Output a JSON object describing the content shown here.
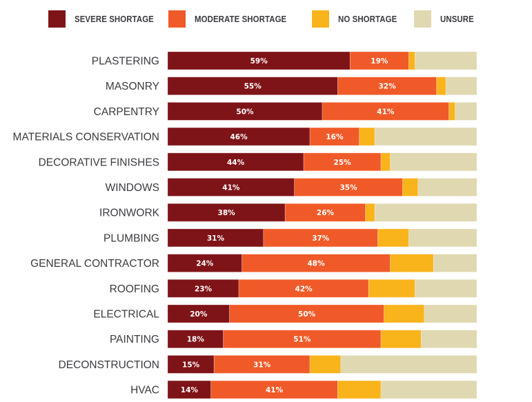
{
  "chart_data": {
    "type": "bar",
    "orientation": "horizontal",
    "stacked": true,
    "title": "",
    "xlabel": "",
    "ylabel": "",
    "xlim": [
      0,
      100
    ],
    "grid": false,
    "legend_position": "top",
    "categories": [
      "PLASTERING",
      "MASONRY",
      "CARPENTRY",
      "MATERIALS CONSERVATION",
      "DECORATIVE FINISHES",
      "WINDOWS",
      "IRONWORK",
      "PLUMBING",
      "GENERAL CONTRACTOR",
      "ROOFING",
      "ELECTRICAL",
      "PAINTING",
      "DECONSTRUCTION",
      "HVAC"
    ],
    "series": [
      {
        "name": "SEVERE SHORTAGE",
        "color": "#7f1418",
        "labeled": true,
        "values": [
          59,
          55,
          50,
          46,
          44,
          41,
          38,
          31,
          24,
          23,
          20,
          18,
          15,
          14
        ]
      },
      {
        "name": "MODERATE SHORTAGE",
        "color": "#f05a28",
        "labeled": true,
        "values": [
          19,
          32,
          41,
          16,
          25,
          35,
          26,
          37,
          48,
          42,
          50,
          51,
          31,
          41
        ]
      },
      {
        "name": "NO SHORTAGE",
        "color": "#f9b31b",
        "labeled": false,
        "values": [
          2,
          3,
          2,
          5,
          3,
          5,
          3,
          10,
          14,
          15,
          13,
          13,
          10,
          14
        ]
      },
      {
        "name": "UNSURE",
        "color": "#e0d8b0",
        "labeled": false,
        "values": [
          20,
          10,
          7,
          33,
          28,
          19,
          33,
          22,
          14,
          20,
          17,
          18,
          44,
          31
        ]
      }
    ],
    "value_label_suffix": "%"
  }
}
